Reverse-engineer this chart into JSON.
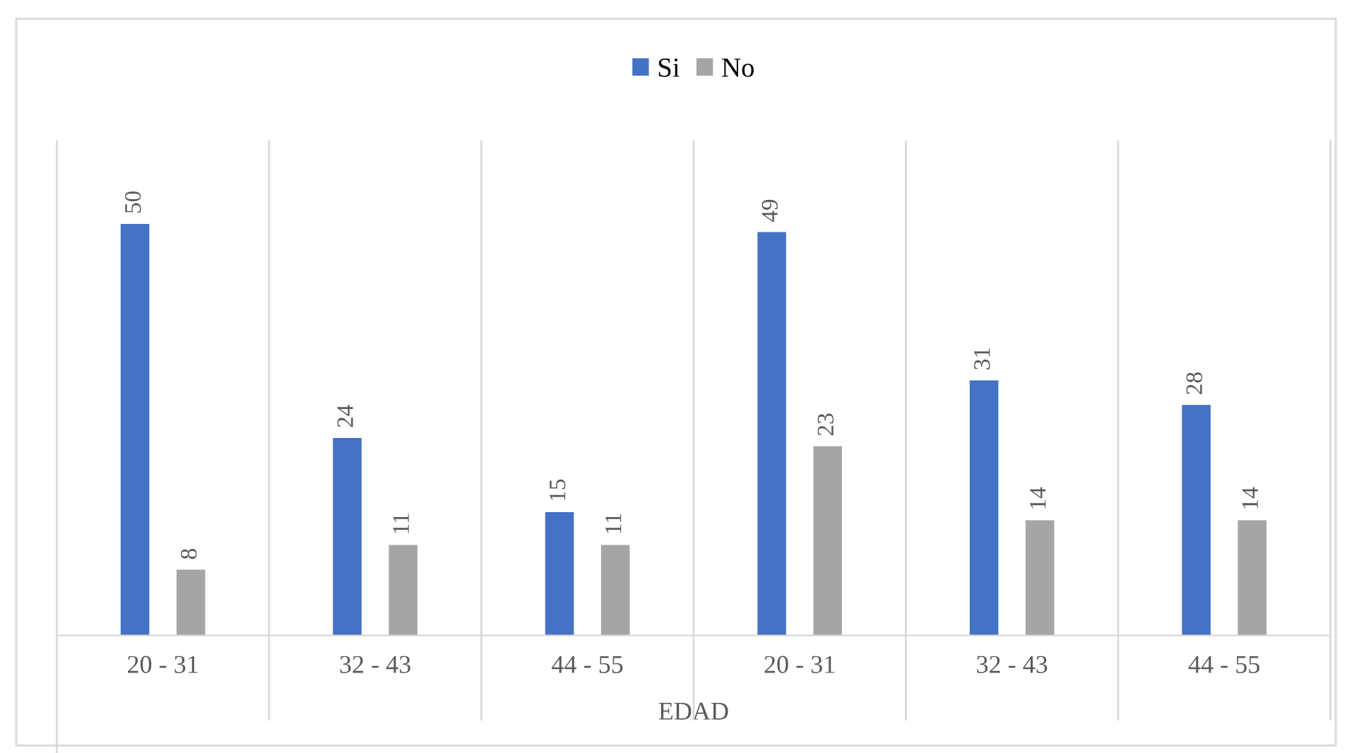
{
  "chart_data": {
    "type": "bar",
    "xlabel": "EDAD",
    "categories": [
      "20 - 31",
      "32 - 43",
      "44 - 55",
      "20 - 31",
      "32 - 43",
      "44 - 55"
    ],
    "series": [
      {
        "name": "Si",
        "color": "#4472c4",
        "values": [
          50,
          24,
          15,
          49,
          31,
          28
        ]
      },
      {
        "name": "No",
        "color": "#a5a5a5",
        "values": [
          8,
          11,
          11,
          23,
          14,
          14
        ]
      }
    ],
    "ylim": [
      0,
      60
    ],
    "tick_labels": "x",
    "data_labels": true,
    "grid": "x",
    "legend": "top"
  }
}
